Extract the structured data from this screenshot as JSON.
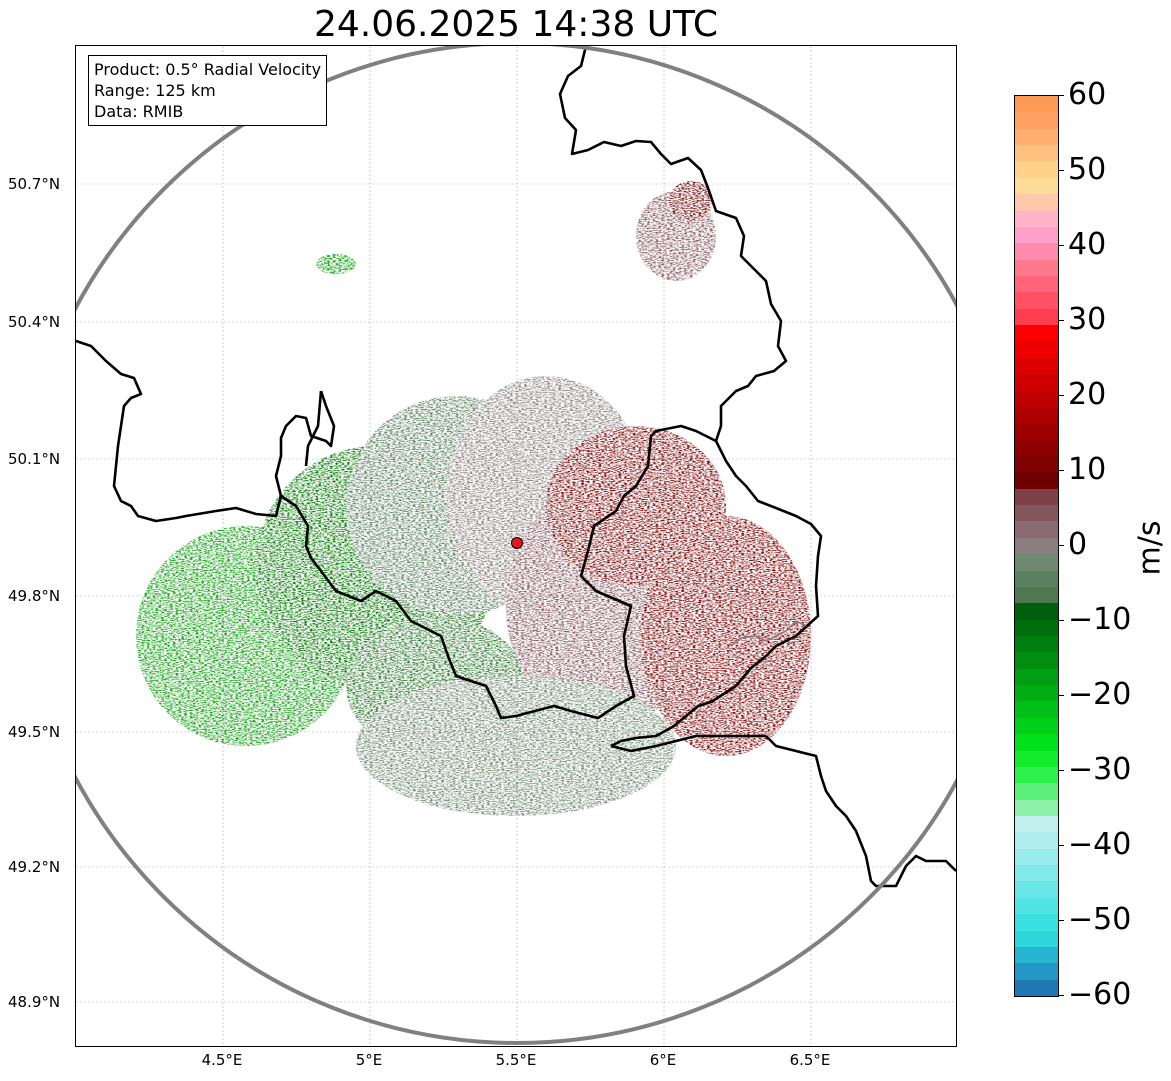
{
  "title": "24.06.2025 14:38 UTC",
  "info": {
    "product": "Product: 0.5° Radial Velocity",
    "range": "Range: 125 km",
    "data": "Data: RMIB"
  },
  "map": {
    "lat_ticks": [
      "50.7°N",
      "50.4°N",
      "50.1°N",
      "49.8°N",
      "49.5°N",
      "49.2°N",
      "48.9°N"
    ],
    "lon_ticks": [
      "4.5°E",
      "5°E",
      "5.5°E",
      "6°E",
      "6.5°E"
    ],
    "radar_site_color": "#e8141e",
    "range_ring_color": "#808080",
    "border_color": "#000000",
    "grid": true
  },
  "colorbar": {
    "unit": "m/s",
    "min": -60,
    "max": 60,
    "tick_labels": [
      "60",
      "50",
      "40",
      "30",
      "20",
      "10",
      "0",
      "−10",
      "−20",
      "−30",
      "−40",
      "−50",
      "−60"
    ],
    "colors_bottom_to_top": [
      "#1f77b4",
      "#2398c4",
      "#27b4d0",
      "#2ed6dc",
      "#3adfe0",
      "#52e3e3",
      "#6ae6e6",
      "#82e9e9",
      "#9aecec",
      "#b0eeee",
      "#c2f0f0",
      "#8ef0a6",
      "#5cf07a",
      "#2ef04a",
      "#12ec2a",
      "#00e11a",
      "#00d018",
      "#00bf16",
      "#00ae14",
      "#009e12",
      "#008e10",
      "#007e0e",
      "#006e0c",
      "#005e0a",
      "#507850",
      "#5a8060",
      "#6f8870",
      "#8a7e7e",
      "#8a6a72",
      "#84565e",
      "#7e4048",
      "#6e0000",
      "#7e0000",
      "#8e0000",
      "#9e0000",
      "#ae0000",
      "#be0000",
      "#ce0000",
      "#de0000",
      "#ee0000",
      "#ff0000",
      "#ff3c50",
      "#ff5064",
      "#ff6478",
      "#ff788c",
      "#ff8cb0",
      "#ffa0c8",
      "#ffb4c8",
      "#ffc8aa",
      "#ffdc9a",
      "#ffd28c",
      "#ffc080",
      "#ffb070",
      "#ffa060",
      "#ff9a55"
    ]
  }
}
